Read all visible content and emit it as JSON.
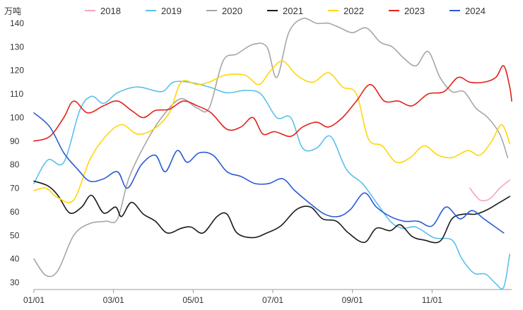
{
  "chart_data": {
    "type": "line",
    "unit_label": "万吨",
    "ylim": [
      30,
      140
    ],
    "yticks": [
      30,
      40,
      50,
      60,
      70,
      80,
      90,
      100,
      110,
      120,
      130,
      140
    ],
    "xlim": [
      0,
      12
    ],
    "xticks": [
      {
        "x": 0,
        "label": "01/01"
      },
      {
        "x": 2,
        "label": "03/01"
      },
      {
        "x": 4,
        "label": "05/01"
      },
      {
        "x": 6,
        "label": "07/01"
      },
      {
        "x": 8,
        "label": "09/01"
      },
      {
        "x": 10,
        "label": "11/01"
      }
    ],
    "grid": false,
    "legend_position": "top",
    "series": [
      {
        "name": "2018",
        "color": "#f4a7b9",
        "points": [
          [
            10.95,
            70
          ],
          [
            11.2,
            65
          ],
          [
            11.45,
            65.5
          ],
          [
            11.7,
            70
          ],
          [
            11.95,
            73.5
          ]
        ]
      },
      {
        "name": "2019",
        "color": "#5bc0eb",
        "points": [
          [
            0,
            72
          ],
          [
            0.35,
            82
          ],
          [
            0.75,
            81
          ],
          [
            1.15,
            103
          ],
          [
            1.45,
            109
          ],
          [
            1.75,
            106
          ],
          [
            2.1,
            110.5
          ],
          [
            2.6,
            113
          ],
          [
            3.2,
            111
          ],
          [
            3.5,
            115
          ],
          [
            3.9,
            115
          ],
          [
            4.4,
            113
          ],
          [
            4.85,
            110.5
          ],
          [
            5.3,
            111.5
          ],
          [
            5.7,
            110
          ],
          [
            6.1,
            100
          ],
          [
            6.45,
            100
          ],
          [
            6.75,
            87
          ],
          [
            7.1,
            87
          ],
          [
            7.45,
            92
          ],
          [
            7.85,
            78
          ],
          [
            8.25,
            72
          ],
          [
            8.6,
            64
          ],
          [
            8.95,
            56
          ],
          [
            9.25,
            53
          ],
          [
            9.6,
            53.5
          ],
          [
            10.05,
            49
          ],
          [
            10.5,
            48
          ],
          [
            10.75,
            40
          ],
          [
            11.05,
            34
          ],
          [
            11.35,
            33.5
          ],
          [
            11.6,
            29.5
          ],
          [
            11.8,
            28
          ],
          [
            11.95,
            42
          ]
        ]
      },
      {
        "name": "2020",
        "color": "#a6a6a6",
        "points": [
          [
            0,
            40
          ],
          [
            0.3,
            33
          ],
          [
            0.6,
            35
          ],
          [
            1.0,
            50
          ],
          [
            1.4,
            55
          ],
          [
            1.8,
            56
          ],
          [
            2.1,
            57
          ],
          [
            2.4,
            75
          ],
          [
            2.9,
            92
          ],
          [
            3.3,
            102
          ],
          [
            3.7,
            108
          ],
          [
            4.1,
            104
          ],
          [
            4.4,
            104
          ],
          [
            4.75,
            124
          ],
          [
            5.1,
            127
          ],
          [
            5.5,
            131
          ],
          [
            5.85,
            130
          ],
          [
            6.1,
            117
          ],
          [
            6.4,
            136
          ],
          [
            6.75,
            142
          ],
          [
            7.1,
            140
          ],
          [
            7.4,
            140
          ],
          [
            7.7,
            138
          ],
          [
            8.0,
            136
          ],
          [
            8.35,
            138
          ],
          [
            8.7,
            132
          ],
          [
            9.0,
            130
          ],
          [
            9.3,
            125
          ],
          [
            9.6,
            122
          ],
          [
            9.9,
            128
          ],
          [
            10.2,
            117
          ],
          [
            10.5,
            111
          ],
          [
            10.8,
            111
          ],
          [
            11.1,
            104
          ],
          [
            11.4,
            100
          ],
          [
            11.7,
            93
          ],
          [
            11.9,
            83
          ]
        ]
      },
      {
        "name": "2021",
        "color": "#1a1a1a",
        "points": [
          [
            0,
            73
          ],
          [
            0.35,
            71
          ],
          [
            0.6,
            67
          ],
          [
            0.9,
            59.5
          ],
          [
            1.2,
            62
          ],
          [
            1.45,
            67
          ],
          [
            1.75,
            59.5
          ],
          [
            2.05,
            62
          ],
          [
            2.2,
            58
          ],
          [
            2.45,
            64
          ],
          [
            2.75,
            59
          ],
          [
            3.05,
            56
          ],
          [
            3.35,
            51
          ],
          [
            3.7,
            53
          ],
          [
            3.95,
            53.5
          ],
          [
            4.25,
            51
          ],
          [
            4.6,
            58
          ],
          [
            4.85,
            59
          ],
          [
            5.1,
            51
          ],
          [
            5.5,
            49
          ],
          [
            5.85,
            51
          ],
          [
            6.2,
            54
          ],
          [
            6.6,
            61
          ],
          [
            6.95,
            62
          ],
          [
            7.25,
            57
          ],
          [
            7.6,
            56
          ],
          [
            7.9,
            51
          ],
          [
            8.3,
            47
          ],
          [
            8.6,
            53
          ],
          [
            8.95,
            52
          ],
          [
            9.2,
            54.5
          ],
          [
            9.5,
            49.5
          ],
          [
            9.8,
            48
          ],
          [
            10.2,
            47.5
          ],
          [
            10.5,
            57
          ],
          [
            10.8,
            59
          ],
          [
            11.1,
            59
          ],
          [
            11.4,
            61
          ],
          [
            11.7,
            64
          ],
          [
            11.95,
            66.5
          ]
        ]
      },
      {
        "name": "2022",
        "color": "#ffd60a",
        "points": [
          [
            0,
            69
          ],
          [
            0.3,
            70
          ],
          [
            0.6,
            66
          ],
          [
            1.0,
            65
          ],
          [
            1.4,
            82
          ],
          [
            1.8,
            92
          ],
          [
            2.2,
            97
          ],
          [
            2.6,
            93
          ],
          [
            3.0,
            95
          ],
          [
            3.4,
            102
          ],
          [
            3.7,
            115
          ],
          [
            4.1,
            114
          ],
          [
            4.4,
            115
          ],
          [
            4.8,
            118
          ],
          [
            5.3,
            118
          ],
          [
            5.65,
            114
          ],
          [
            5.95,
            120
          ],
          [
            6.25,
            124
          ],
          [
            6.6,
            118
          ],
          [
            7.0,
            115
          ],
          [
            7.4,
            119
          ],
          [
            7.75,
            113
          ],
          [
            8.1,
            110
          ],
          [
            8.4,
            91
          ],
          [
            8.75,
            88
          ],
          [
            9.1,
            81
          ],
          [
            9.45,
            83
          ],
          [
            9.8,
            88
          ],
          [
            10.15,
            84
          ],
          [
            10.5,
            83
          ],
          [
            10.9,
            86
          ],
          [
            11.2,
            84
          ],
          [
            11.5,
            90
          ],
          [
            11.75,
            97
          ],
          [
            11.95,
            89
          ]
        ]
      },
      {
        "name": "2023",
        "color": "#e3211b",
        "points": [
          [
            0,
            90
          ],
          [
            0.4,
            92
          ],
          [
            0.75,
            100
          ],
          [
            1.0,
            107
          ],
          [
            1.35,
            102
          ],
          [
            1.75,
            105
          ],
          [
            2.1,
            107
          ],
          [
            2.45,
            103
          ],
          [
            2.75,
            100
          ],
          [
            3.05,
            103
          ],
          [
            3.4,
            103.5
          ],
          [
            3.75,
            107
          ],
          [
            4.1,
            105
          ],
          [
            4.45,
            102
          ],
          [
            4.85,
            95
          ],
          [
            5.2,
            96
          ],
          [
            5.5,
            100
          ],
          [
            5.75,
            93
          ],
          [
            6.05,
            94
          ],
          [
            6.45,
            92
          ],
          [
            6.75,
            96
          ],
          [
            7.1,
            98
          ],
          [
            7.4,
            96
          ],
          [
            7.75,
            100
          ],
          [
            8.1,
            107
          ],
          [
            8.45,
            114
          ],
          [
            8.8,
            107
          ],
          [
            9.15,
            107
          ],
          [
            9.5,
            105
          ],
          [
            9.9,
            110
          ],
          [
            10.3,
            111
          ],
          [
            10.65,
            117
          ],
          [
            10.95,
            115
          ],
          [
            11.3,
            115
          ],
          [
            11.6,
            117
          ],
          [
            11.8,
            122
          ],
          [
            11.95,
            113
          ],
          [
            12.0,
            107
          ]
        ]
      },
      {
        "name": "2024",
        "color": "#2a5bd7",
        "points": [
          [
            0,
            102
          ],
          [
            0.4,
            96
          ],
          [
            0.75,
            85
          ],
          [
            1.1,
            78
          ],
          [
            1.4,
            73
          ],
          [
            1.75,
            74
          ],
          [
            2.1,
            77
          ],
          [
            2.35,
            70
          ],
          [
            2.7,
            80
          ],
          [
            3.05,
            84
          ],
          [
            3.3,
            77
          ],
          [
            3.6,
            86
          ],
          [
            3.85,
            81
          ],
          [
            4.15,
            85
          ],
          [
            4.5,
            84
          ],
          [
            4.85,
            77
          ],
          [
            5.2,
            75
          ],
          [
            5.55,
            72
          ],
          [
            5.9,
            72
          ],
          [
            6.25,
            74
          ],
          [
            6.55,
            69
          ],
          [
            6.9,
            64
          ],
          [
            7.3,
            59
          ],
          [
            7.65,
            58
          ],
          [
            7.95,
            61
          ],
          [
            8.3,
            68
          ],
          [
            8.6,
            62
          ],
          [
            8.95,
            58
          ],
          [
            9.3,
            56
          ],
          [
            9.65,
            56
          ],
          [
            10.0,
            54
          ],
          [
            10.35,
            62
          ],
          [
            10.7,
            57
          ],
          [
            11.0,
            60.5
          ],
          [
            11.3,
            57
          ],
          [
            11.55,
            54
          ],
          [
            11.8,
            51
          ]
        ]
      }
    ]
  }
}
